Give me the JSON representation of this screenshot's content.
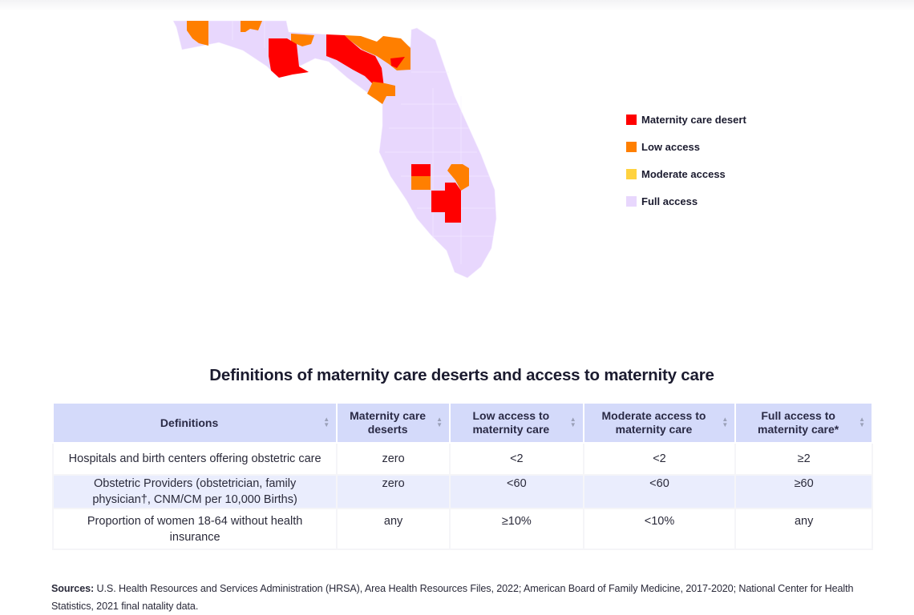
{
  "legend": {
    "items": [
      {
        "label": "Maternity care desert",
        "color": "#ff0000"
      },
      {
        "label": "Low access",
        "color": "#ff7f00"
      },
      {
        "label": "Moderate access",
        "color": "#ffd23f"
      },
      {
        "label": "Full access",
        "color": "#e8d7fd"
      }
    ]
  },
  "map": {
    "state": "Florida"
  },
  "table": {
    "title": "Definitions of maternity care deserts and access to maternity care",
    "headers": [
      "Definitions",
      "Maternity care deserts",
      "Low access to maternity care",
      "Moderate access to maternity care",
      "Full access to maternity care*"
    ],
    "rows": [
      [
        "Hospitals and birth centers offering obstetric care",
        "zero",
        "<2",
        "<2",
        "≥2"
      ],
      [
        "Obstetric Providers (obstetrician, family physician†, CNM/CM per 10,000 Births)",
        "zero",
        "<60",
        "<60",
        "≥60"
      ],
      [
        "Proportion of women 18-64 without health insurance",
        "any",
        "≥10%",
        "<10%",
        "any"
      ]
    ]
  },
  "sources": {
    "label": "Sources:",
    "text": "U.S. Health Resources and Services Administration (HRSA), Area Health Resources Files, 2022; American Board of Family Medicine, 2017-2020; National Center for Health Statistics, 2021 final natality data."
  }
}
